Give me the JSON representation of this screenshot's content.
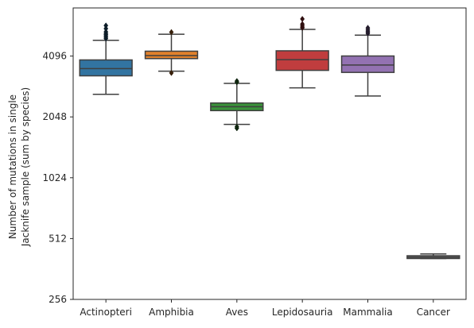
{
  "chart_data": {
    "type": "box",
    "title": "",
    "xlabel": "",
    "ylabel_lines": [
      "Number of mutations in single",
      "Jacknife sample (sum by species)"
    ],
    "yscale": "log2",
    "ylim": [
      256,
      8192
    ],
    "yticks": [
      256,
      512,
      1024,
      2048,
      4096
    ],
    "ytick_labels": [
      "256",
      "512",
      "1024",
      "2048",
      "4096"
    ],
    "grid": false,
    "categories": [
      "Actinopteri",
      "Amphibia",
      "Aves",
      "Lepidosauria",
      "Mammalia",
      "Cancer"
    ],
    "colors": [
      "#3274a1",
      "#e1812c",
      "#3a923a",
      "#c03d3e",
      "#9372b2",
      "#7f7f7f"
    ],
    "boxes": [
      {
        "category": "Actinopteri",
        "whisker_low": 2650,
        "q1": 3270,
        "median": 3550,
        "q3": 3920,
        "whisker_high": 4900,
        "outliers": [
          5000,
          5070,
          5150,
          5230,
          5300,
          5400,
          5600,
          5800
        ]
      },
      {
        "category": "Amphibia",
        "whisker_low": 3450,
        "q1": 3980,
        "median": 4120,
        "q3": 4330,
        "whisker_high": 5250,
        "outliers": [
          3380,
          5380
        ]
      },
      {
        "category": "Aves",
        "whisker_low": 1880,
        "q1": 2200,
        "median": 2300,
        "q3": 2400,
        "whisker_high": 3000,
        "outliers": [
          1800,
          1830,
          3040,
          3080
        ]
      },
      {
        "category": "Lepidosauria",
        "whisker_low": 2850,
        "q1": 3480,
        "median": 3930,
        "q3": 4350,
        "whisker_high": 5550,
        "outliers": [
          5650,
          5700,
          5800,
          5900,
          6250
        ]
      },
      {
        "category": "Mammalia",
        "whisker_low": 2600,
        "q1": 3400,
        "median": 3700,
        "q3": 4100,
        "whisker_high": 5200,
        "outliers": [
          5300,
          5380,
          5450,
          5550,
          5650
        ]
      },
      {
        "category": "Cancer",
        "whisker_low": 408,
        "q1": 408,
        "median": 414,
        "q3": 421,
        "whisker_high": 430,
        "outliers": []
      }
    ]
  }
}
